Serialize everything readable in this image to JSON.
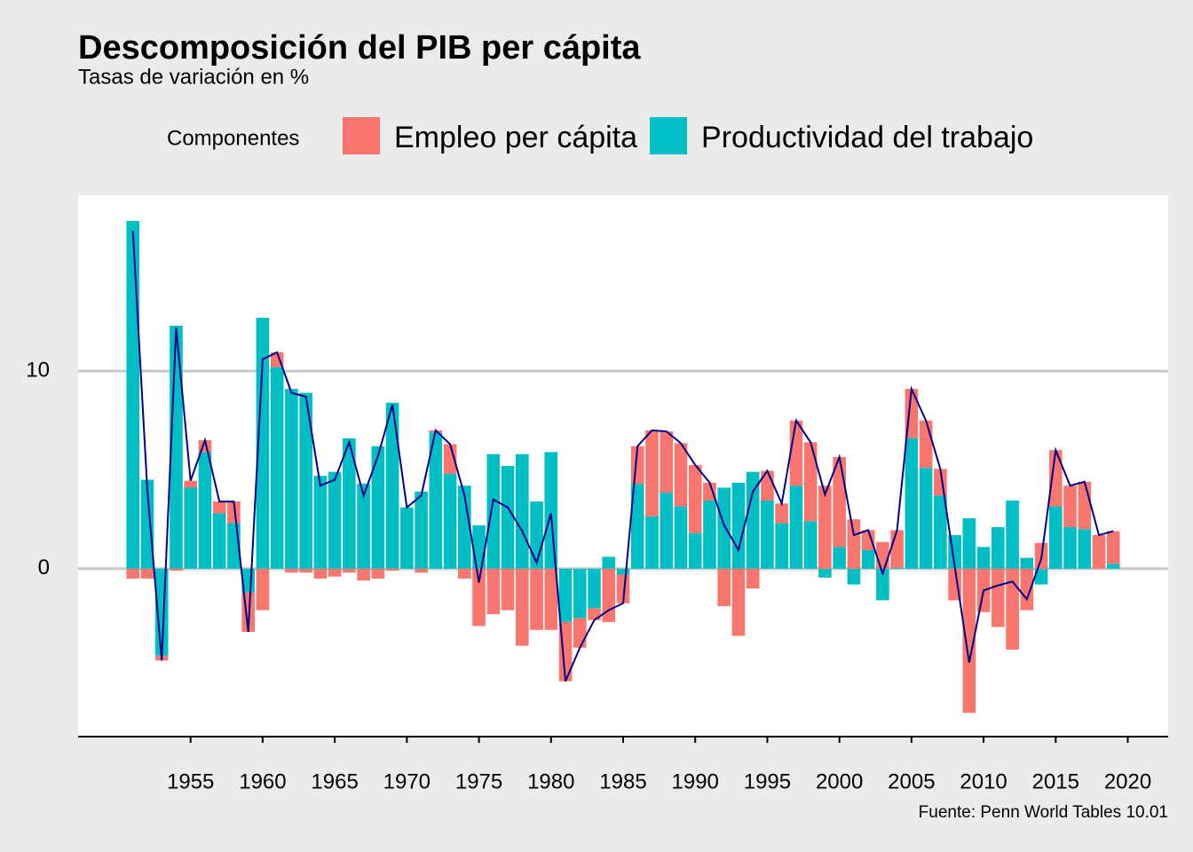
{
  "chart_data": {
    "type": "bar",
    "stacked": true,
    "title": "Descomposición del PIB per cápita",
    "subtitle": "Tasas de variación en %",
    "legend_title": "Componentes",
    "caption": "Fuente: Penn World Tables 10.01",
    "x": [
      1951,
      1952,
      1953,
      1954,
      1955,
      1956,
      1957,
      1958,
      1959,
      1960,
      1961,
      1962,
      1963,
      1964,
      1965,
      1966,
      1967,
      1968,
      1969,
      1970,
      1971,
      1972,
      1973,
      1974,
      1975,
      1976,
      1977,
      1978,
      1979,
      1980,
      1981,
      1982,
      1983,
      1984,
      1985,
      1986,
      1987,
      1988,
      1989,
      1990,
      1991,
      1992,
      1993,
      1994,
      1995,
      1996,
      1997,
      1998,
      1999,
      2000,
      2001,
      2002,
      2003,
      2004,
      2005,
      2006,
      2007,
      2008,
      2009,
      2010,
      2011,
      2012,
      2013,
      2014,
      2015,
      2016,
      2017,
      2018,
      2019
    ],
    "series": [
      {
        "name": "Empleo per cápita",
        "color": "#f8766d",
        "values": [
          -0.5,
          -0.5,
          -0.25,
          -0.1,
          0.35,
          0.6,
          0.6,
          1.1,
          -2.0,
          -2.1,
          0.75,
          -0.2,
          -0.2,
          -0.5,
          -0.4,
          -0.2,
          -0.6,
          -0.5,
          -0.1,
          0,
          -0.2,
          0.1,
          1.5,
          -0.5,
          -2.9,
          -2.3,
          -2.1,
          -3.9,
          -3.1,
          -3.1,
          -3.0,
          -1.5,
          -0.6,
          -2.7,
          -1.45,
          1.9,
          4.35,
          3.1,
          3.2,
          3.45,
          0.9,
          -1.9,
          -3.4,
          -1.0,
          1.5,
          1.0,
          3.3,
          4.0,
          4.2,
          4.55,
          2.5,
          1.0,
          1.35,
          1.9,
          2.5,
          2.4,
          1.35,
          -1.6,
          -7.3,
          -2.2,
          -2.95,
          -4.1,
          -2.1,
          1.3,
          2.85,
          2.1,
          2.4,
          1.7,
          1.65
        ]
      },
      {
        "name": "Productividad del trabajo",
        "color": "#00bfc4",
        "values": [
          17.6,
          4.5,
          -4.4,
          12.3,
          4.1,
          5.9,
          2.8,
          2.3,
          -1.2,
          12.7,
          10.2,
          9.1,
          8.9,
          4.7,
          4.9,
          6.6,
          4.3,
          6.2,
          8.4,
          3.1,
          3.9,
          6.9,
          4.8,
          4.2,
          2.2,
          5.8,
          5.2,
          5.8,
          3.4,
          5.9,
          -2.7,
          -2.5,
          -2.0,
          0.6,
          -0.3,
          4.3,
          2.65,
          3.85,
          3.15,
          1.8,
          3.45,
          4.1,
          4.35,
          4.9,
          3.45,
          2.3,
          4.2,
          2.4,
          -0.45,
          1.1,
          -0.8,
          0.95,
          -1.6,
          0.05,
          6.6,
          5.1,
          3.7,
          1.7,
          2.55,
          1.1,
          2.1,
          3.45,
          0.55,
          -0.8,
          3.15,
          2.1,
          2.0,
          0,
          0.25
        ]
      }
    ],
    "line": {
      "color": "#00008b",
      "values": [
        17.1,
        4.0,
        -4.65,
        12.2,
        4.45,
        6.5,
        3.4,
        3.4,
        -3.2,
        10.6,
        10.95,
        8.9,
        8.7,
        4.2,
        4.5,
        6.4,
        3.7,
        5.7,
        8.3,
        3.1,
        3.7,
        7.0,
        6.3,
        3.7,
        -0.7,
        3.5,
        3.1,
        1.9,
        0.3,
        2.8,
        -5.7,
        -4.0,
        -2.6,
        -2.1,
        -1.75,
        6.2,
        7.0,
        6.95,
        6.35,
        5.25,
        4.35,
        2.2,
        0.95,
        3.9,
        4.95,
        3.3,
        7.5,
        6.4,
        3.75,
        5.65,
        1.7,
        1.95,
        -0.25,
        1.95,
        9.1,
        7.5,
        5.05,
        0.1,
        -4.75,
        -1.1,
        -0.85,
        -0.65,
        -1.55,
        0.5,
        6.0,
        4.2,
        4.4,
        1.7,
        1.9
      ]
    },
    "xlim": [
      1947.2,
      2022.8
    ],
    "xticks": [
      1955,
      1960,
      1965,
      1970,
      1975,
      1980,
      1985,
      1990,
      1995,
      2000,
      2005,
      2010,
      2015,
      2020
    ],
    "ylim": [
      -8.5,
      18.9
    ],
    "yticks": [
      0,
      10
    ],
    "grid": true
  }
}
